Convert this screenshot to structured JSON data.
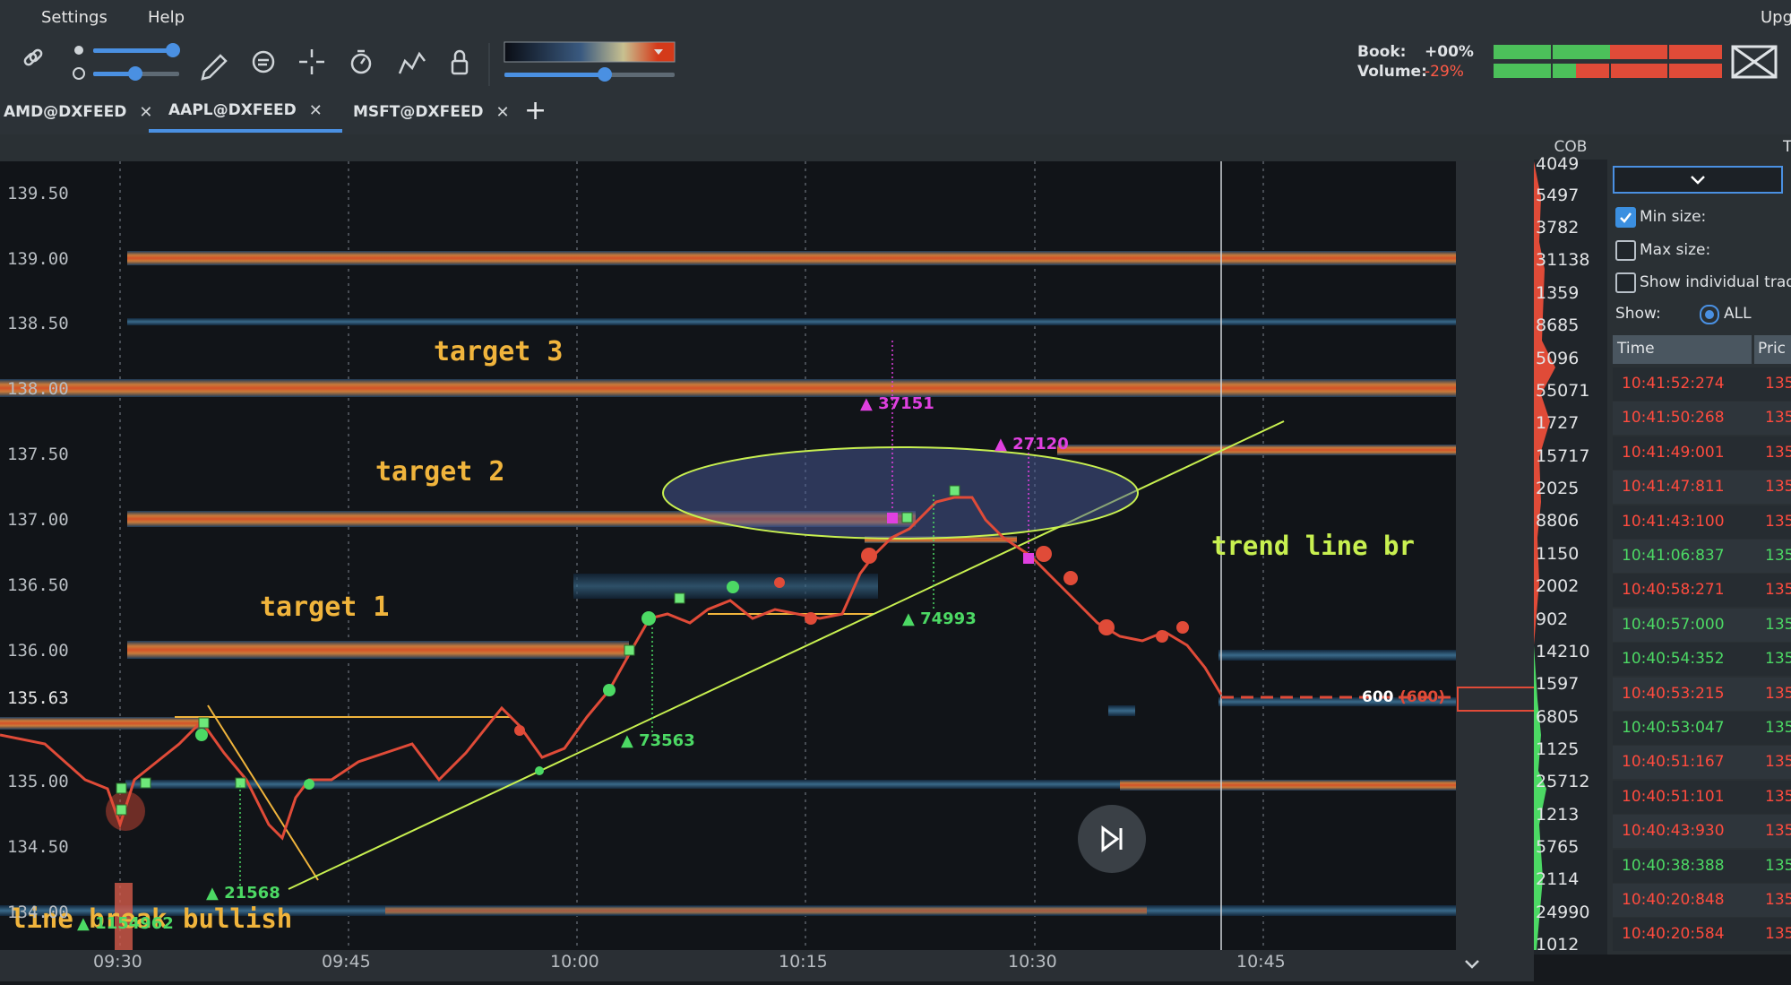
{
  "menu": {
    "settings": "Settings",
    "help": "Help",
    "upgrade": "Upg"
  },
  "toolbar": {
    "book_label": "Book:",
    "book_value": "+00%",
    "volume_label": "Volume:",
    "volume_value": "-29%",
    "icons": [
      "link-icon",
      "brightness-icon",
      "contrast-icon",
      "pencil-icon",
      "comment-icon",
      "crosshair-icon",
      "timer-icon",
      "indicators-icon",
      "lock-icon",
      "heatmap-palette-dropdown",
      "layout-icon"
    ]
  },
  "tabs": [
    {
      "label": "AMD@DXFEED",
      "close": "✕"
    },
    {
      "label": "AAPL@DXFEED",
      "close": "✕",
      "active": true
    },
    {
      "label": "MSFT@DXFEED",
      "close": "✕"
    }
  ],
  "add_tab": "+",
  "chart": {
    "annotations": {
      "target3": "target 3",
      "target2": "target 2",
      "target1": "target 1",
      "trend_break": "trend line br",
      "line_break_bullish": "line break bullish"
    },
    "volume_labels": [
      "37151",
      "27120",
      "74993",
      "73563",
      "21568",
      "1154962"
    ],
    "last_price": "135.63",
    "last_size": "600",
    "last_size_paren": "(600)",
    "price_ticks": [
      "139.50",
      "139.00",
      "138.50",
      "138.00",
      "137.50",
      "137.00",
      "136.50",
      "136.00",
      "135.00",
      "134.50",
      "134.00"
    ],
    "time_ticks": [
      "09:30",
      "09:45",
      "10:00",
      "10:15",
      "10:30",
      "10:45"
    ]
  },
  "cob": {
    "title": "COB",
    "values": [
      "4049",
      "5497",
      "3782",
      "31138",
      "1359",
      "8685",
      "5096",
      "55071",
      "1727",
      "15717",
      "2025",
      "8806",
      "1150",
      "2002",
      "902",
      "14210",
      "1597",
      "6805",
      "1125",
      "25712",
      "1213",
      "5765",
      "2114",
      "24990",
      "1012"
    ]
  },
  "tape": {
    "title": "T",
    "min_size": "Min size:",
    "max_size": "Max size:",
    "show_individual": "Show individual trade",
    "show_label": "Show:",
    "show_all": "ALL",
    "col_time": "Time",
    "col_price": "Pric",
    "rows": [
      {
        "time": "10:41:52:274",
        "price": "135",
        "side": "sell"
      },
      {
        "time": "10:41:50:268",
        "price": "135",
        "side": "sell"
      },
      {
        "time": "10:41:49:001",
        "price": "135",
        "side": "sell"
      },
      {
        "time": "10:41:47:811",
        "price": "135",
        "side": "sell"
      },
      {
        "time": "10:41:43:100",
        "price": "135",
        "side": "sell"
      },
      {
        "time": "10:41:06:837",
        "price": "135",
        "side": "buy"
      },
      {
        "time": "10:40:58:271",
        "price": "135",
        "side": "sell"
      },
      {
        "time": "10:40:57:000",
        "price": "135",
        "side": "buy"
      },
      {
        "time": "10:40:54:352",
        "price": "135",
        "side": "buy"
      },
      {
        "time": "10:40:53:215",
        "price": "135",
        "side": "sell"
      },
      {
        "time": "10:40:53:047",
        "price": "135",
        "side": "buy"
      },
      {
        "time": "10:40:51:167",
        "price": "135",
        "side": "sell"
      },
      {
        "time": "10:40:51:101",
        "price": "135",
        "side": "sell"
      },
      {
        "time": "10:40:43:930",
        "price": "135",
        "side": "sell"
      },
      {
        "time": "10:40:38:388",
        "price": "135",
        "side": "buy"
      },
      {
        "time": "10:40:20:848",
        "price": "135",
        "side": "sell"
      },
      {
        "time": "10:40:20:584",
        "price": "135",
        "side": "sell"
      }
    ]
  },
  "colors": {
    "buy": "#4cd964",
    "sell": "#ff4b3e",
    "accent": "#4a90e2",
    "annotation": "#f0b43c",
    "magenta": "#e040e0",
    "trend": "#c8f050"
  }
}
